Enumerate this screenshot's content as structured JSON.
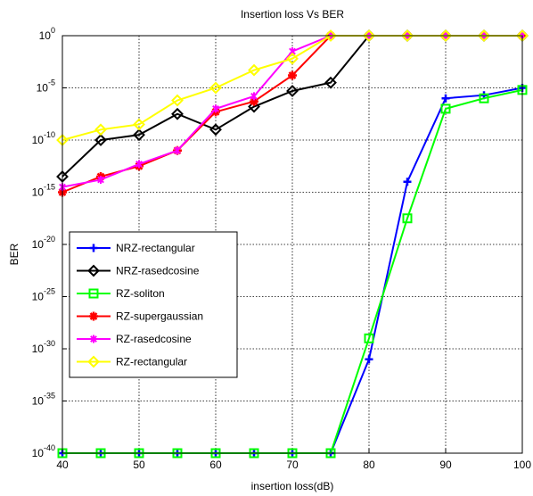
{
  "chart_data": {
    "type": "line",
    "title": "Insertion loss Vs BER",
    "xlabel": "insertion loss(dB)",
    "ylabel": "BER",
    "xlim": [
      40,
      100
    ],
    "ylim_log10": [
      -40,
      0
    ],
    "yscale": "log",
    "grid": true,
    "legend_position": "left",
    "x": [
      40,
      45,
      50,
      55,
      60,
      65,
      70,
      75,
      80,
      85,
      90,
      95,
      100
    ],
    "x_tick_labels": [
      "40",
      "50",
      "60",
      "70",
      "80",
      "90",
      "100"
    ],
    "y_tick_labels": [
      {
        "base": "10",
        "exp": "0"
      },
      {
        "base": "10",
        "exp": "-5"
      },
      {
        "base": "10",
        "exp": "-10"
      },
      {
        "base": "10",
        "exp": "-15"
      },
      {
        "base": "10",
        "exp": "-20"
      },
      {
        "base": "10",
        "exp": "-25"
      },
      {
        "base": "10",
        "exp": "-30"
      },
      {
        "base": "10",
        "exp": "-35"
      },
      {
        "base": "10",
        "exp": "-40"
      }
    ],
    "series": [
      {
        "name": "NRZ-rectangular",
        "color": "#0000ff",
        "marker": "plus",
        "log10_ber": [
          -40,
          -40,
          -40,
          -40,
          -40,
          -40,
          -40,
          -40,
          -31,
          -14,
          -6,
          -5.7,
          -5
        ]
      },
      {
        "name": "NRZ-rasedcosine",
        "color": "#000000",
        "marker": "diamond",
        "log10_ber": [
          -13.5,
          -10,
          -9.5,
          -7.5,
          -9,
          -6.8,
          -5.3,
          -4.5,
          0,
          0,
          0,
          0,
          0
        ]
      },
      {
        "name": "RZ-soliton",
        "color": "#00ff00",
        "marker": "square",
        "log10_ber": [
          -40,
          -40,
          -40,
          -40,
          -40,
          -40,
          -40,
          -40,
          -29,
          -17.5,
          -7,
          -6,
          -5.2
        ]
      },
      {
        "name": "RZ-supergaussian",
        "color": "#ff0000",
        "marker": "star",
        "log10_ber": [
          -15,
          -13.5,
          -12.5,
          -11,
          -7.3,
          -6.3,
          -3.8,
          0,
          0,
          0,
          0,
          0,
          0
        ]
      },
      {
        "name": "RZ-rasedcosine",
        "color": "#ff00ff",
        "marker": "asterisk",
        "log10_ber": [
          -14.5,
          -13.8,
          -12.3,
          -11,
          -7,
          -5.8,
          -1.5,
          0,
          0,
          0,
          0,
          0,
          0
        ]
      },
      {
        "name": "RZ-rectangular",
        "color": "#ffff00",
        "marker": "diamond",
        "log10_ber": [
          -10,
          -9,
          -8.5,
          -6.2,
          -5,
          -3.3,
          -2.2,
          0,
          0,
          0,
          0,
          0,
          0
        ]
      }
    ]
  }
}
